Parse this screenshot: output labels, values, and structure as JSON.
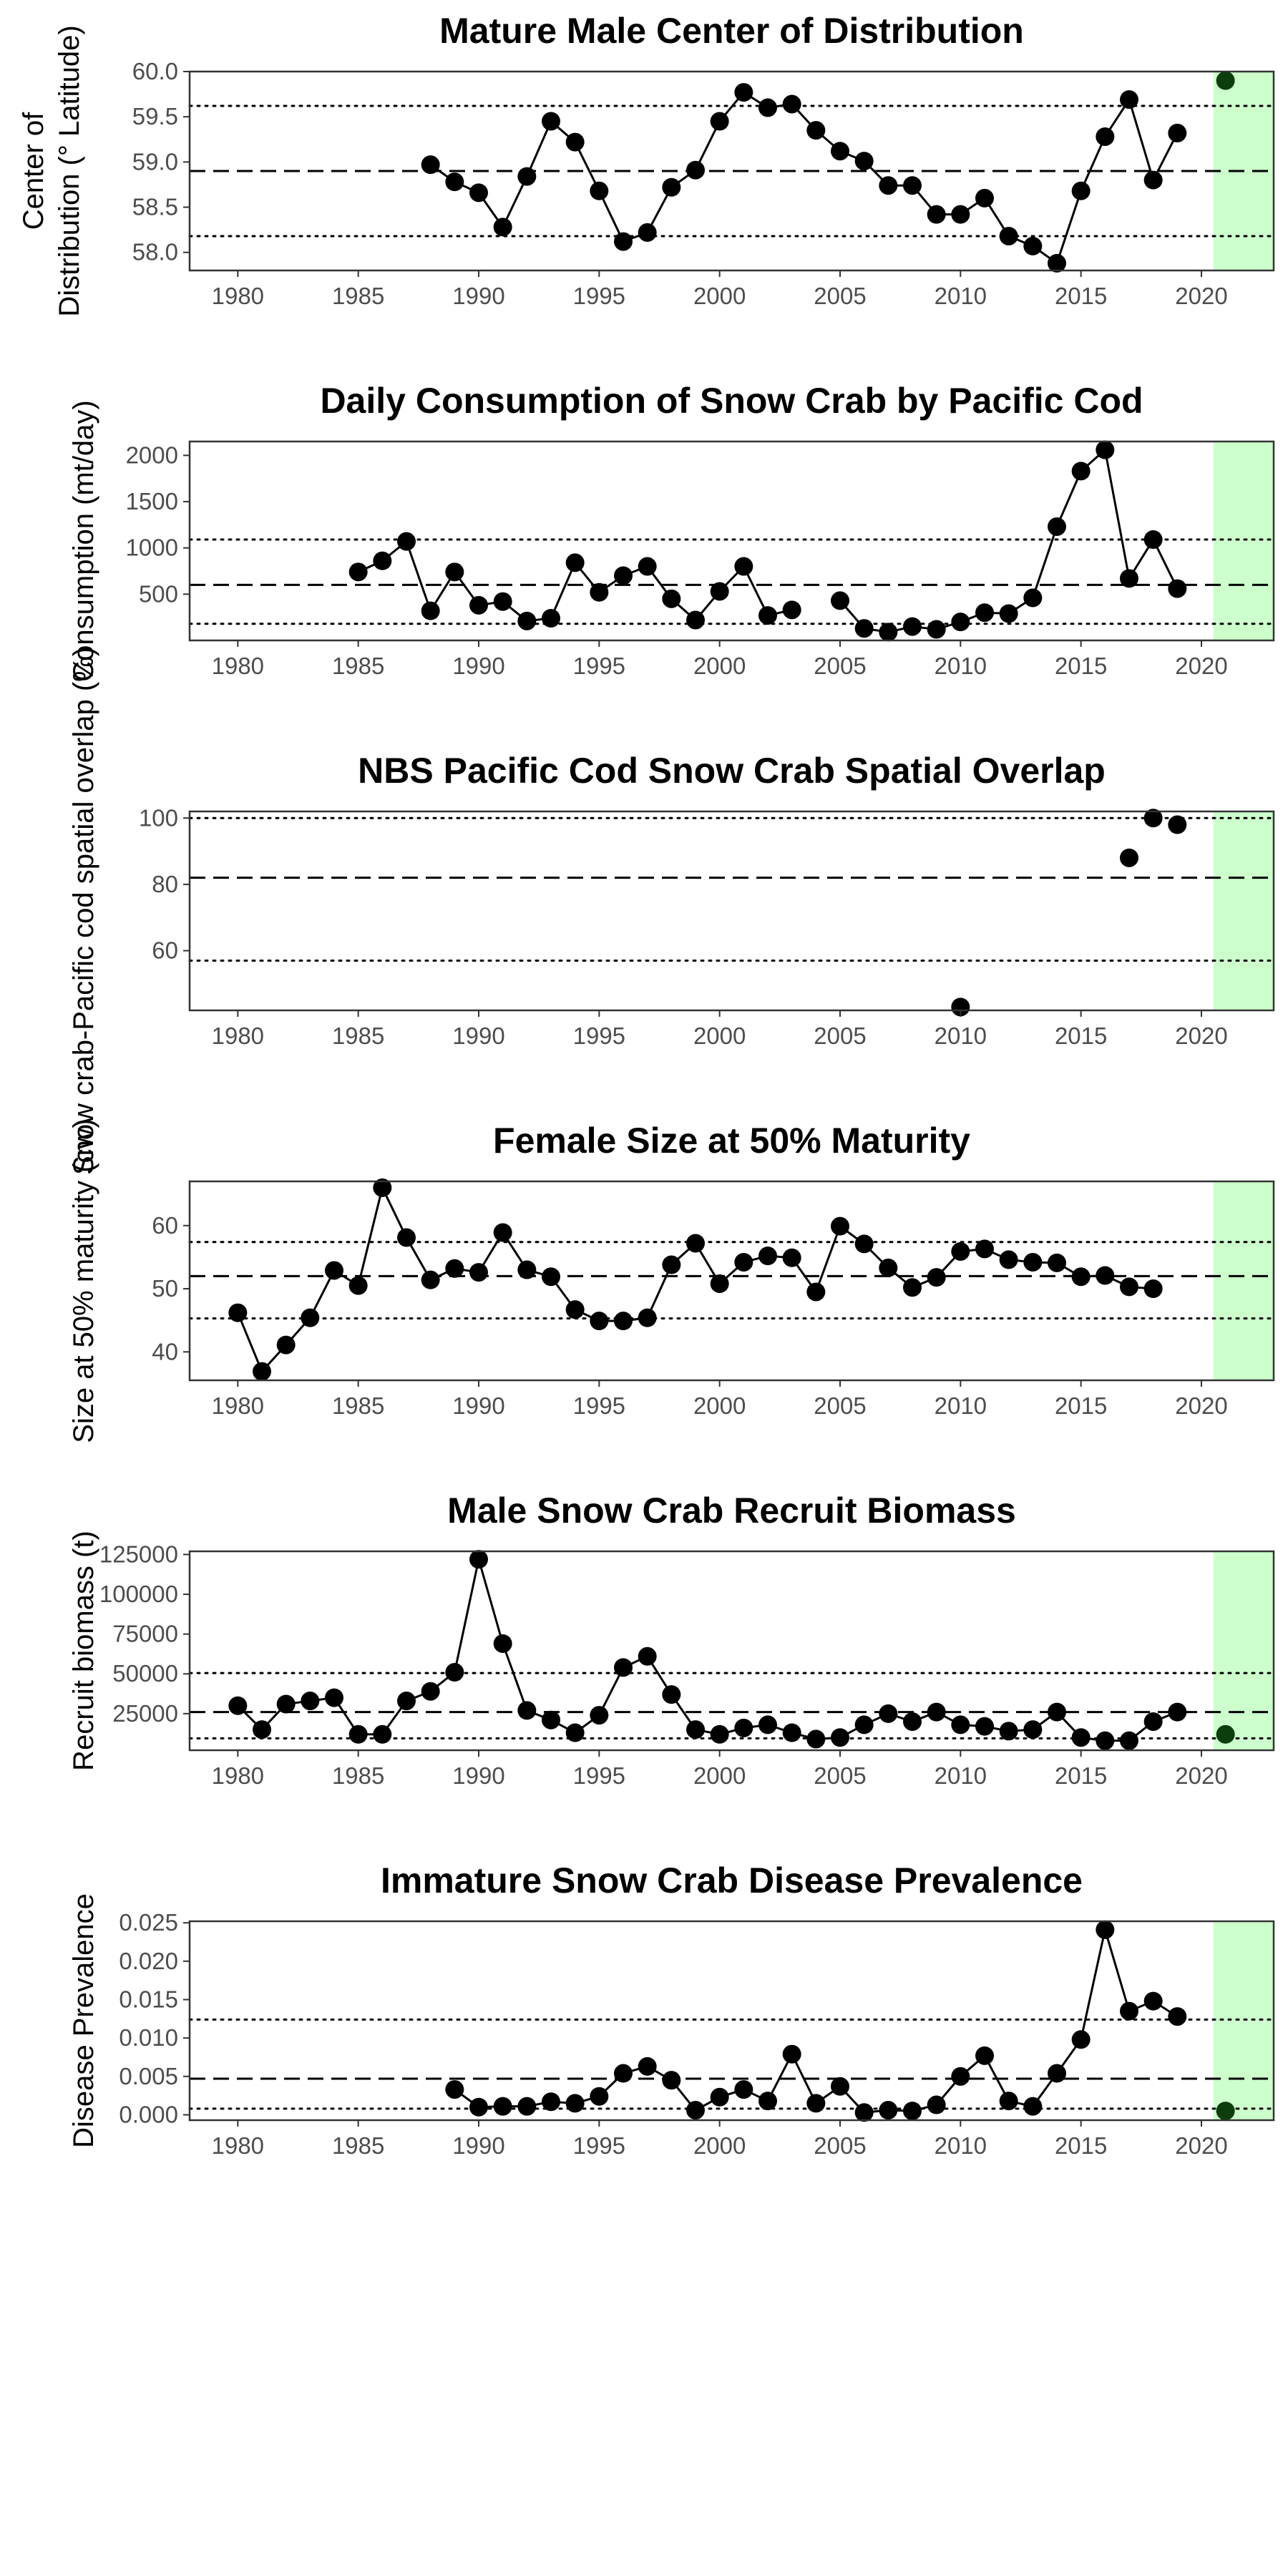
{
  "chart_data": [
    {
      "type": "line",
      "title": "Mature Male Center of Distribution",
      "ylabel_lines": [
        "Center of",
        "Distribution (° Latitude)"
      ],
      "xlim": [
        1978,
        2023
      ],
      "ylim": [
        57.8,
        60.0
      ],
      "xticks": [
        1980,
        1985,
        1990,
        1995,
        2000,
        2005,
        2010,
        2015,
        2020
      ],
      "yticks": [
        58.0,
        58.5,
        59.0,
        59.5,
        60.0
      ],
      "ytick_labels": [
        "58.0",
        "58.5",
        "59.0",
        "59.5",
        "60.0"
      ],
      "mean": 58.9,
      "sd_lines": [
        58.18,
        59.62
      ],
      "highlight_range": [
        2020.5,
        2023
      ],
      "series": [
        {
          "x": [
            1988,
            1989,
            1990,
            1991,
            1992,
            1993,
            1994,
            1995,
            1996,
            1997,
            1998,
            1999,
            2000,
            2001,
            2002,
            2003,
            2004,
            2005,
            2006,
            2007,
            2008,
            2009,
            2010,
            2011,
            2012,
            2013,
            2014,
            2015,
            2016,
            2017,
            2018,
            2019
          ],
          "values": [
            58.97,
            58.78,
            58.66,
            58.28,
            58.84,
            59.45,
            59.22,
            58.68,
            58.12,
            58.22,
            58.72,
            58.91,
            59.45,
            59.77,
            59.6,
            59.64,
            59.35,
            59.12,
            59.01,
            58.74,
            58.74,
            58.42,
            58.42,
            58.6,
            58.18,
            58.07,
            57.88,
            58.68,
            59.28,
            59.69,
            58.8,
            59.32
          ]
        }
      ],
      "highlight_points": [
        {
          "x": 2021,
          "y": 59.9
        }
      ]
    },
    {
      "type": "line",
      "title": "Daily Consumption of Snow Crab by Pacific Cod",
      "ylabel_lines": [
        "Consumption (mt/day)"
      ],
      "xlim": [
        1978,
        2023
      ],
      "ylim": [
        0,
        2150
      ],
      "xticks": [
        1980,
        1985,
        1990,
        1995,
        2000,
        2005,
        2010,
        2015,
        2020
      ],
      "yticks": [
        500,
        1000,
        1500,
        2000
      ],
      "ytick_labels": [
        "500",
        "1000",
        "1500",
        "2000"
      ],
      "mean": 600,
      "sd_lines": [
        180,
        1090
      ],
      "highlight_range": [
        2020.5,
        2023
      ],
      "series": [
        {
          "x": [
            1985,
            1986,
            1987,
            1988,
            1989,
            1990,
            1991,
            1992,
            1993,
            1994,
            1995,
            1996,
            1997,
            1998,
            1999,
            2000,
            2001,
            2002,
            2003,
            null,
            2005,
            2006,
            2007,
            2008,
            2009,
            2010,
            2011,
            2012,
            2013,
            2014,
            2015,
            2016,
            2017,
            2018,
            2019
          ],
          "values": [
            740,
            860,
            1070,
            320,
            740,
            380,
            420,
            210,
            240,
            840,
            520,
            700,
            800,
            450,
            220,
            530,
            800,
            270,
            330,
            null,
            430,
            130,
            90,
            150,
            120,
            200,
            300,
            290,
            460,
            1230,
            1830,
            2060,
            670,
            1090,
            560
          ]
        }
      ]
    },
    {
      "type": "scatter",
      "title": "NBS Pacific Cod Snow Crab Spatial Overlap",
      "ylabel_lines": [
        "Snow crab-Pacific cod spatial overlap (%)"
      ],
      "xlim": [
        1978,
        2023
      ],
      "ylim": [
        42,
        102
      ],
      "xticks": [
        1980,
        1985,
        1990,
        1995,
        2000,
        2005,
        2010,
        2015,
        2020
      ],
      "yticks": [
        60,
        80,
        100
      ],
      "ytick_labels": [
        "60",
        "80",
        "100"
      ],
      "mean": 82,
      "sd_lines": [
        57,
        100
      ],
      "highlight_range": [
        2020.5,
        2023
      ],
      "series": [
        {
          "x": [
            2010,
            null,
            2017,
            2018,
            2019
          ],
          "values": [
            43,
            null,
            88,
            100,
            98
          ]
        }
      ]
    },
    {
      "type": "line",
      "title": "Female Size at 50% Maturity",
      "ylabel_lines": [
        "Size at 50% maturity (cw)"
      ],
      "xlim": [
        1978,
        2023
      ],
      "ylim": [
        35.5,
        67
      ],
      "xticks": [
        1980,
        1985,
        1990,
        1995,
        2000,
        2005,
        2010,
        2015,
        2020
      ],
      "yticks": [
        40,
        50,
        60
      ],
      "ytick_labels": [
        "40",
        "50",
        "60"
      ],
      "mean": 52,
      "sd_lines": [
        45.3,
        57.4
      ],
      "highlight_range": [
        2020.5,
        2023
      ],
      "series": [
        {
          "x": [
            1980,
            1981,
            1982,
            1983,
            1984,
            1985,
            1986,
            1987,
            1988,
            1989,
            1990,
            1991,
            1992,
            1993,
            1994,
            1995,
            1996,
            1997,
            1998,
            1999,
            2000,
            2001,
            2002,
            2003,
            2004,
            2005,
            2006,
            2007,
            2008,
            2009,
            2010,
            2011,
            2012,
            2013,
            2014,
            2015,
            2016,
            2017,
            2018
          ],
          "values": [
            46.2,
            36.9,
            41.1,
            45.4,
            52.9,
            50.5,
            66.0,
            58.1,
            51.4,
            53.2,
            52.6,
            58.9,
            53.0,
            51.9,
            46.7,
            44.9,
            44.9,
            45.4,
            53.8,
            57.2,
            50.8,
            54.2,
            55.2,
            54.9,
            49.5,
            59.9,
            57.1,
            53.3,
            50.2,
            51.8,
            55.9,
            56.3,
            54.6,
            54.2,
            54.1,
            51.9,
            52.1,
            50.3,
            50.0
          ]
        }
      ]
    },
    {
      "type": "line",
      "title": "Male Snow Crab Recruit Biomass",
      "ylabel_lines": [
        "Recruit biomass (t)"
      ],
      "xlim": [
        1978,
        2023
      ],
      "ylim": [
        2000,
        127000
      ],
      "xticks": [
        1980,
        1985,
        1990,
        1995,
        2000,
        2005,
        2010,
        2015,
        2020
      ],
      "yticks": [
        25000,
        50000,
        75000,
        100000,
        125000
      ],
      "ytick_labels": [
        "25000",
        "50000",
        "75000",
        "100000",
        "125000"
      ],
      "mean": 26000,
      "sd_lines": [
        9500,
        50500
      ],
      "highlight_range": [
        2020.5,
        2023
      ],
      "series": [
        {
          "x": [
            1980,
            1981,
            1982,
            1983,
            1984,
            1985,
            1986,
            1987,
            1988,
            1989,
            1990,
            1991,
            1992,
            1993,
            1994,
            1995,
            1996,
            1997,
            1998,
            1999,
            2000,
            2001,
            2002,
            2003,
            2004,
            2005,
            2006,
            2007,
            2008,
            2009,
            2010,
            2011,
            2012,
            2013,
            2014,
            2015,
            2016,
            2017,
            2018,
            2019
          ],
          "values": [
            30000,
            15000,
            31000,
            33000,
            35000,
            12000,
            12000,
            33000,
            39000,
            51000,
            122000,
            69000,
            27000,
            21000,
            13000,
            24000,
            54000,
            61000,
            37000,
            15000,
            12000,
            16000,
            18000,
            13000,
            9000,
            10000,
            18000,
            25000,
            20000,
            26000,
            18000,
            17000,
            14000,
            15000,
            26000,
            10000,
            8000,
            8000,
            20000,
            26000
          ]
        }
      ],
      "highlight_points": [
        {
          "x": 2021,
          "y": 12000
        }
      ]
    },
    {
      "type": "line",
      "title": "Immature Snow Crab Disease Prevalence",
      "ylabel_lines": [
        "Disease Prevalence"
      ],
      "xlim": [
        1978,
        2023
      ],
      "ylim": [
        -0.0007,
        0.0252
      ],
      "xticks": [
        1980,
        1985,
        1990,
        1995,
        2000,
        2005,
        2010,
        2015,
        2020
      ],
      "yticks": [
        0.0,
        0.005,
        0.01,
        0.015,
        0.02,
        0.025
      ],
      "ytick_labels": [
        "0.000",
        "0.005",
        "0.010",
        "0.015",
        "0.020",
        "0.025"
      ],
      "mean": 0.0047,
      "sd_lines": [
        0.0008,
        0.0124
      ],
      "highlight_range": [
        2020.5,
        2023
      ],
      "series": [
        {
          "x": [
            1989,
            1990,
            1991,
            1992,
            1993,
            1994,
            1995,
            1996,
            1997,
            1998,
            1999,
            2000,
            2001,
            2002,
            2003,
            2004,
            2005,
            2006,
            2007,
            2008,
            2009,
            2010,
            2011,
            2012,
            2013,
            2014,
            2015,
            2016,
            2017,
            2018,
            2019
          ],
          "values": [
            0.0033,
            0.001,
            0.0011,
            0.0011,
            0.0017,
            0.0015,
            0.0024,
            0.0054,
            0.0063,
            0.0045,
            0.0006,
            0.0023,
            0.0033,
            0.0018,
            0.0079,
            0.0015,
            0.0037,
            0.0003,
            0.0006,
            0.0005,
            0.0013,
            0.005,
            0.0077,
            0.0018,
            0.0011,
            0.0054,
            0.0098,
            0.0241,
            0.0135,
            0.0148,
            0.0128
          ]
        }
      ],
      "highlight_points": [
        {
          "x": 2021,
          "y": 0.0005
        }
      ]
    }
  ]
}
